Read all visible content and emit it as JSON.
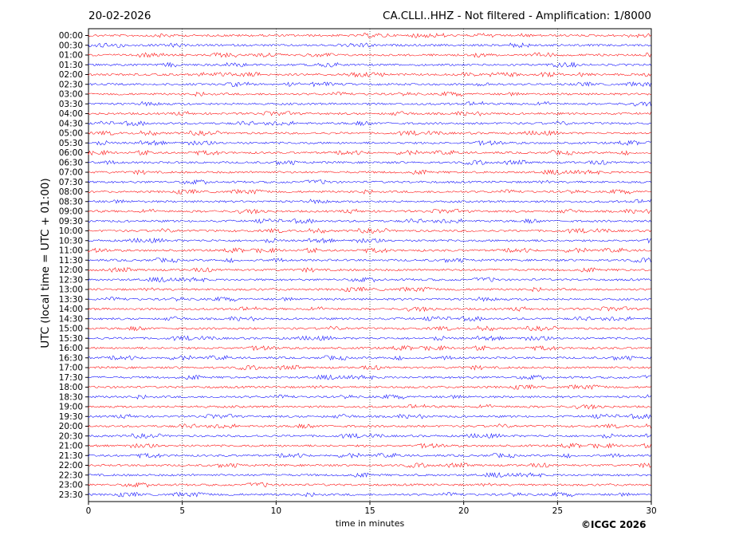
{
  "header": {
    "date": "20-02-2026",
    "station_info": "CA.CLLI..HHZ - Not filtered - Amplification: 1/8000"
  },
  "footer": {
    "copyright": "©ICGC 2026"
  },
  "chart_data": {
    "type": "line",
    "title": "CA.CLLI..HHZ - Not filtered - Amplification: 1/8000",
    "xlabel": "time in minutes",
    "ylabel": "UTC (local time = UTC + 01:00)",
    "xlim": [
      0,
      30
    ],
    "x_ticks": [
      "0",
      "5",
      "10",
      "15",
      "20",
      "25",
      "30"
    ],
    "grid": "vertical dotted at x = 5, 10, 15, 20, 25",
    "series_colors": [
      "#ff0000",
      "#0000ff"
    ],
    "color_pattern": "alternating red, blue per 30-minute row",
    "rows": [
      "00:00",
      "00:30",
      "01:00",
      "01:30",
      "02:00",
      "02:30",
      "03:00",
      "03:30",
      "04:00",
      "04:30",
      "05:00",
      "05:30",
      "06:00",
      "06:30",
      "07:00",
      "07:30",
      "08:00",
      "08:30",
      "09:00",
      "09:30",
      "10:00",
      "10:30",
      "11:00",
      "11:30",
      "12:00",
      "12:30",
      "13:00",
      "13:30",
      "14:00",
      "14:30",
      "15:00",
      "15:30",
      "16:00",
      "16:30",
      "17:00",
      "17:30",
      "18:00",
      "18:30",
      "19:00",
      "19:30",
      "20:00",
      "20:30",
      "21:00",
      "21:30",
      "22:00",
      "22:30",
      "23:00",
      "23:30"
    ]
  }
}
